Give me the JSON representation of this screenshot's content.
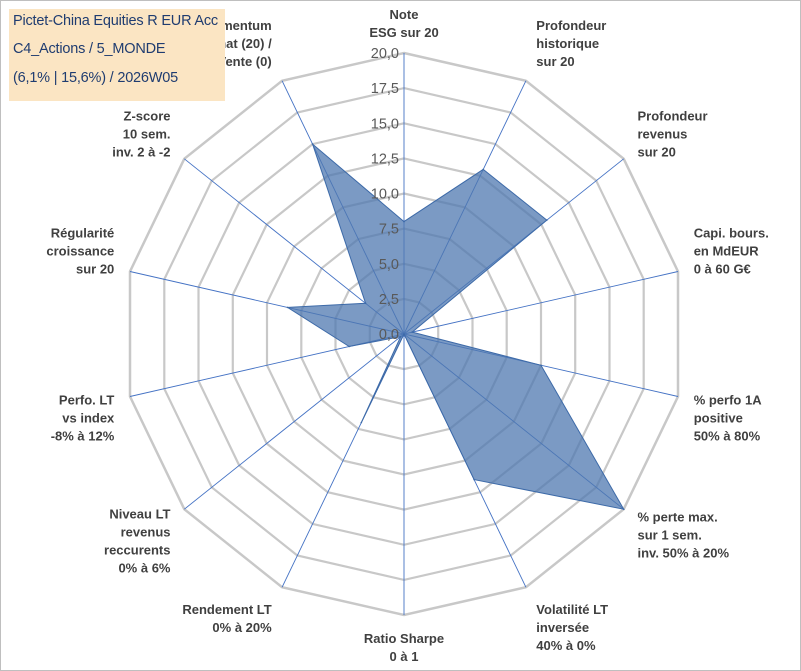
{
  "title": {
    "line1": "Pictet-China Equities R EUR Acc",
    "line2": "C4_Actions / 5_MONDE",
    "line3": "(6,1% | 15,6%) / 2026W05"
  },
  "colors": {
    "fill": "#4f78b0",
    "fill_opacity": "0.75",
    "grid": "#c8c8c8",
    "spoke": "#4472c4",
    "title_bg": "#fbe5c3",
    "title_text": "#1f3c70"
  },
  "chart_data": {
    "type": "radar",
    "title": "Pictet-China Equities R EUR Acc",
    "rmin": 0,
    "rmax": 20,
    "ticks": [
      "0,0",
      "2,5",
      "5,0",
      "7,5",
      "10,0",
      "12,5",
      "15,0",
      "17,5",
      "20,0"
    ],
    "axes": [
      {
        "label": [
          "Note",
          "ESG sur 20"
        ],
        "value": 8.0
      },
      {
        "label": [
          "Profondeur",
          "historique",
          "sur 20"
        ],
        "value": 13.0
      },
      {
        "label": [
          "Profondeur",
          "revenus",
          "sur 20"
        ],
        "value": 13.0
      },
      {
        "label": [
          "Capi. bours.",
          "en MdEUR",
          "0 à 60 G€"
        ],
        "value": 0.6
      },
      {
        "label": [
          "% perfo 1A",
          "positive",
          "50% à 80%"
        ],
        "value": 10.0
      },
      {
        "label": [
          "% perte max.",
          "sur 1 sem.",
          "inv. 50% à 20%"
        ],
        "value": 20.0
      },
      {
        "label": [
          "Volatilité LT",
          "inversée",
          "40% à 0%"
        ],
        "value": 11.5
      },
      {
        "label": [
          "Ratio Sharpe",
          "0 à 1"
        ],
        "value": 0.0
      },
      {
        "label": [
          "Rendement LT",
          "0% à 20%"
        ],
        "value": 7.0
      },
      {
        "label": [
          "Niveau LT",
          "revenus",
          "reccurents",
          "0% à 6%"
        ],
        "value": 0.3
      },
      {
        "label": [
          "Perfo. LT",
          "vs index",
          "-8% à 12%"
        ],
        "value": 4.0
      },
      {
        "label": [
          "Régularité",
          "croissance",
          "sur 20"
        ],
        "value": 8.5
      },
      {
        "label": [
          "Z-score",
          "10 sem.",
          "inv. 2 à -2"
        ],
        "value": 3.5
      },
      {
        "label": [
          "Momentum",
          "Achat (20) /",
          "Vente (0)"
        ],
        "value": 15.0
      }
    ]
  }
}
